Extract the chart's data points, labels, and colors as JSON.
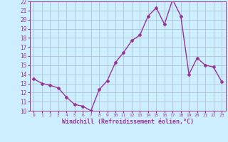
{
  "x": [
    0,
    1,
    2,
    3,
    4,
    5,
    6,
    7,
    8,
    9,
    10,
    11,
    12,
    13,
    14,
    15,
    16,
    17,
    18,
    19,
    20,
    21,
    22,
    23
  ],
  "y": [
    13.5,
    13.0,
    12.8,
    12.5,
    11.5,
    10.7,
    10.5,
    10.0,
    12.3,
    13.3,
    15.3,
    16.4,
    17.7,
    18.3,
    20.4,
    21.3,
    19.5,
    22.2,
    20.4,
    14.0,
    15.8,
    15.0,
    14.8,
    13.2
  ],
  "ylim": [
    10,
    22
  ],
  "xlim": [
    -0.5,
    23.5
  ],
  "yticks": [
    10,
    11,
    12,
    13,
    14,
    15,
    16,
    17,
    18,
    19,
    20,
    21,
    22
  ],
  "xticks": [
    0,
    1,
    2,
    3,
    4,
    5,
    6,
    7,
    8,
    9,
    10,
    11,
    12,
    13,
    14,
    15,
    16,
    17,
    18,
    19,
    20,
    21,
    22,
    23
  ],
  "line_color": "#993399",
  "marker": "D",
  "marker_size": 2.0,
  "bg_color": "#cceeff",
  "grid_color": "#aabbcc",
  "xlabel": "Windchill (Refroidissement éolien,°C)",
  "xlabel_color": "#993399",
  "tick_color": "#993399",
  "axis_color": "#993399",
  "line_width": 1.0
}
